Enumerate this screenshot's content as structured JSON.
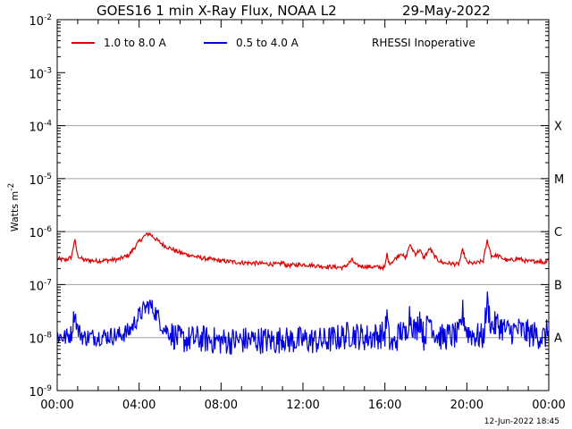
{
  "chart_data": {
    "type": "line",
    "title": "GOES16 1 min X-Ray Flux, NOAA L2",
    "date": "29-May-2022",
    "ylabel": "Watts m",
    "ylabel_exp": "-2",
    "yscale": "log",
    "ylim": [
      1e-09,
      0.01
    ],
    "xlim_hours": [
      0,
      24
    ],
    "y_ticks": [
      {
        "base": "10",
        "exp": "-2",
        "value": 0.01
      },
      {
        "base": "10",
        "exp": "-3",
        "value": 0.001
      },
      {
        "base": "10",
        "exp": "-4",
        "value": 0.0001
      },
      {
        "base": "10",
        "exp": "-5",
        "value": 1e-05
      },
      {
        "base": "10",
        "exp": "-6",
        "value": 1e-06
      },
      {
        "base": "10",
        "exp": "-7",
        "value": 1e-07
      },
      {
        "base": "10",
        "exp": "-8",
        "value": 1e-08
      },
      {
        "base": "10",
        "exp": "-9",
        "value": 1e-09
      }
    ],
    "x_ticks": [
      {
        "label": "00:00",
        "hour": 0
      },
      {
        "label": "04:00",
        "hour": 4
      },
      {
        "label": "08:00",
        "hour": 8
      },
      {
        "label": "12:00",
        "hour": 12
      },
      {
        "label": "16:00",
        "hour": 16
      },
      {
        "label": "20:00",
        "hour": 20
      },
      {
        "label": "00:00",
        "hour": 24
      }
    ],
    "flare_classes": [
      {
        "label": "X",
        "level": 0.0001
      },
      {
        "label": "M",
        "level": 1e-05
      },
      {
        "label": "C",
        "level": 1e-06
      },
      {
        "label": "B",
        "level": 1e-07
      },
      {
        "label": "A",
        "level": 1e-08
      }
    ],
    "annotation": "RHESSI Inoperative",
    "timestamp": "12-Jun-2022 18:45",
    "series": [
      {
        "name": "1.0 to 8.0 A",
        "color": "#e00000",
        "x_hours": [
          0,
          0.4,
          0.7,
          0.85,
          1.0,
          1.3,
          2.0,
          3.0,
          3.5,
          4.0,
          4.3,
          4.5,
          4.8,
          5.2,
          6.0,
          7.0,
          8.0,
          9.0,
          10.0,
          10.8,
          11.0,
          11.2,
          12.0,
          13.0,
          14.0,
          14.4,
          14.6,
          15.0,
          16.0,
          16.1,
          16.2,
          16.4,
          16.8,
          17.0,
          17.2,
          17.5,
          17.7,
          17.9,
          18.2,
          18.4,
          18.6,
          18.8,
          19.2,
          19.6,
          19.8,
          20.0,
          20.4,
          20.8,
          21.0,
          21.2,
          21.5,
          22.0,
          22.5,
          23.0,
          23.5,
          23.8,
          24.0
        ],
        "values": [
          3.1e-07,
          2.9e-07,
          3.3e-07,
          7.2e-07,
          3.5e-07,
          2.9e-07,
          2.8e-07,
          3e-07,
          3.6e-07,
          6.5e-07,
          8.5e-07,
          9.2e-07,
          7.3e-07,
          5.5e-07,
          4e-07,
          3.2e-07,
          2.8e-07,
          2.6e-07,
          2.5e-07,
          2.4e-07,
          2.6e-07,
          2.3e-07,
          2.4e-07,
          2.2e-07,
          2.1e-07,
          2.9e-07,
          2.3e-07,
          2.2e-07,
          2.1e-07,
          3.8e-07,
          2.5e-07,
          2.8e-07,
          4e-07,
          3e-07,
          5.6e-07,
          3.8e-07,
          4.5e-07,
          3.2e-07,
          4.8e-07,
          3.5e-07,
          2.9e-07,
          2.6e-07,
          2.5e-07,
          2.4e-07,
          4.5e-07,
          2.6e-07,
          2.5e-07,
          2.8e-07,
          6.8e-07,
          3.5e-07,
          3.5e-07,
          2.8e-07,
          3.1e-07,
          2.7e-07,
          2.8e-07,
          2.6e-07,
          3.2e-07
        ]
      },
      {
        "name": "0.5 to 4.0 A",
        "color": "#0000e0",
        "x_hours": [
          0,
          0.4,
          0.7,
          0.85,
          1.0,
          1.3,
          2.0,
          3.0,
          3.5,
          4.0,
          4.3,
          4.5,
          4.8,
          5.2,
          6.0,
          7.0,
          8.0,
          9.0,
          10.0,
          10.8,
          11.0,
          11.2,
          12.0,
          13.0,
          14.0,
          14.4,
          14.6,
          15.0,
          16.0,
          16.1,
          16.2,
          16.4,
          16.8,
          17.0,
          17.2,
          17.5,
          17.7,
          17.9,
          18.2,
          18.4,
          18.6,
          18.8,
          19.2,
          19.6,
          19.8,
          20.0,
          20.4,
          20.8,
          21.0,
          21.2,
          21.5,
          22.0,
          22.5,
          23.0,
          23.5,
          23.8,
          24.0
        ],
        "values": [
          1.1e-08,
          1e-08,
          1.2e-08,
          3.2e-08,
          1.4e-08,
          1e-08,
          1.05e-08,
          1.1e-08,
          1.3e-08,
          2.6e-08,
          3.6e-08,
          4.2e-08,
          3e-08,
          1.5e-08,
          9e-09,
          9.5e-09,
          8.5e-09,
          8.8e-09,
          9e-09,
          8.5e-09,
          1.1e-08,
          8.8e-09,
          9e-09,
          8.6e-09,
          1.05e-08,
          1.2e-08,
          1.1e-08,
          1e-08,
          1.15e-08,
          2.6e-08,
          9e-09,
          7e-09,
          1.4e-08,
          1e-08,
          2.8e-08,
          1.2e-08,
          2.6e-08,
          1e-08,
          2.4e-08,
          1.3e-08,
          1.1e-08,
          1e-08,
          1.1e-08,
          1.05e-08,
          3e-08,
          1.3e-08,
          1.1e-08,
          1e-08,
          4.6e-08,
          1.6e-08,
          1.8e-08,
          1.3e-08,
          1.4e-08,
          1.2e-08,
          1.1e-08,
          1e-08,
          1.5e-08
        ]
      }
    ]
  }
}
